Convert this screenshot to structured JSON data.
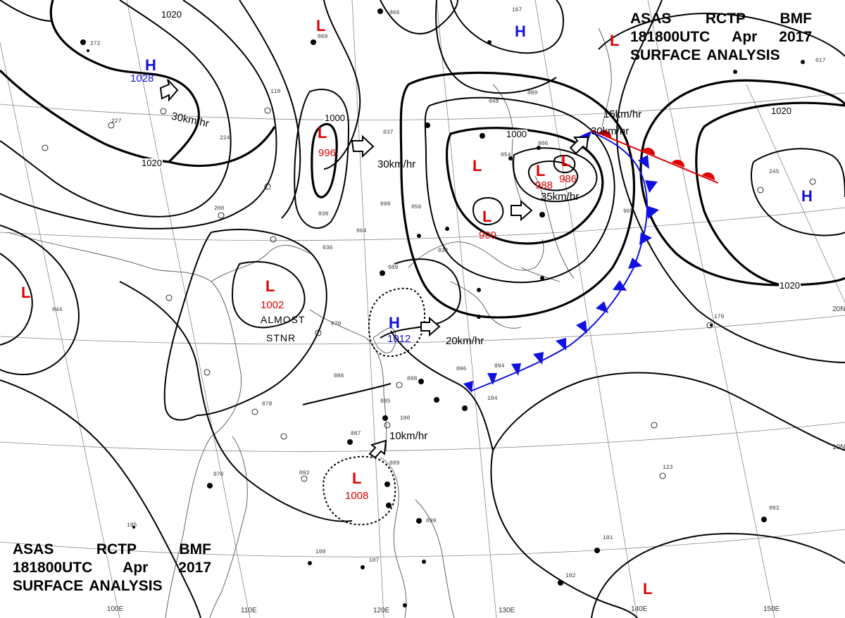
{
  "header": {
    "line1": [
      "ASAS",
      "RCTP",
      "BMF"
    ],
    "line2": [
      "181800UTC",
      "Apr",
      "2017"
    ],
    "line3": [
      "SURFACE",
      "ANALYSIS"
    ]
  },
  "pressure_systems": [
    {
      "type": "H",
      "pressure": "1028",
      "color": "blue"
    },
    {
      "type": "L",
      "pressure": "996",
      "color": "red"
    },
    {
      "type": "L",
      "pressure": "",
      "color": "red"
    },
    {
      "type": "H",
      "pressure": "",
      "color": "blue"
    },
    {
      "type": "L",
      "pressure": "",
      "color": "red"
    },
    {
      "type": "L",
      "pressure": "",
      "color": "red"
    },
    {
      "type": "L",
      "pressure": "988",
      "color": "red"
    },
    {
      "type": "L",
      "pressure": "986",
      "color": "red"
    },
    {
      "type": "L",
      "pressure": "990",
      "color": "red"
    },
    {
      "type": "L",
      "pressure": "1002",
      "color": "red"
    },
    {
      "type": "H",
      "pressure": "1012",
      "color": "blue"
    },
    {
      "type": "L",
      "pressure": "1008",
      "color": "red"
    },
    {
      "type": "L",
      "pressure": "",
      "color": "red"
    },
    {
      "type": "H",
      "pressure": "",
      "color": "blue"
    },
    {
      "type": "L",
      "pressure": "",
      "color": "red"
    }
  ],
  "motion_labels": [
    "30km/hr",
    "30km/hr",
    "15km/hr",
    "30km/hr",
    "35km/hr",
    "20km/hr",
    "10km/hr"
  ],
  "isobar_labels": [
    "1020",
    "1020",
    "1000",
    "1000",
    "1020",
    "1020"
  ],
  "notes": {
    "almost_stnr_line1": "ALMOST",
    "almost_stnr_line2": "STNR"
  },
  "latitude_labels": [
    "20N",
    "10N"
  ],
  "longitude_labels": [
    "100E",
    "110E",
    "120E",
    "130E",
    "140E",
    "150E"
  ],
  "station_obs": [
    "066",
    "060",
    "272",
    "227",
    "224",
    "110",
    "037",
    "098",
    "064",
    "036",
    "089",
    "070",
    "086",
    "098",
    "085",
    "100",
    "087",
    "078",
    "070",
    "092",
    "089",
    "099",
    "105",
    "108",
    "107",
    "096",
    "094",
    "104",
    "123",
    "093",
    "101",
    "102",
    "170",
    "245",
    "167",
    "017",
    "054",
    "048",
    "089",
    "006",
    "965",
    "044",
    "200",
    "030",
    "056",
    "032"
  ],
  "colors": {
    "high": "#1010e0",
    "low": "#e00000",
    "warm_front": "#e00000",
    "cold_front": "#1010e0",
    "isobar": "#000000",
    "graticule": "#888888",
    "coast": "#555555"
  }
}
